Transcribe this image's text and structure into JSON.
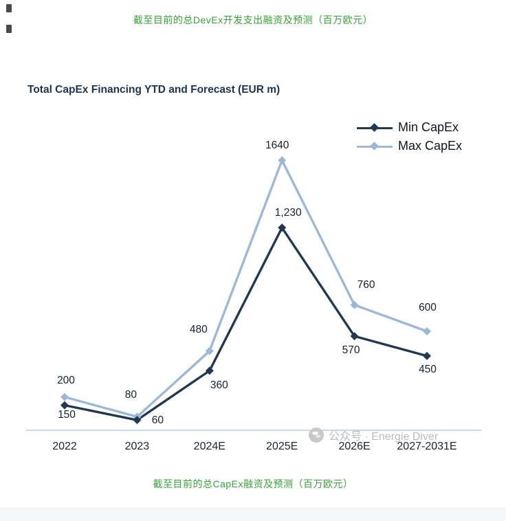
{
  "page": {
    "top_caption": "截至目前的总DevEx开发支出融资及预测（百万欧元）",
    "bottom_caption": "截至目前的总CapEx融资及预测（百万欧元）",
    "watermark": "公众号 · Energie Diver"
  },
  "chart_data": {
    "type": "line",
    "title": "Total CapEx Financing YTD and Forecast (EUR m)",
    "categories": [
      "2022",
      "2023",
      "2024E",
      "2025E",
      "2026E",
      "2027-2031E"
    ],
    "series": [
      {
        "name": "Min CapEx",
        "color": "#22384e",
        "values": [
          150,
          60,
          360,
          1230,
          570,
          450
        ],
        "labels": [
          "150",
          "60",
          "360",
          "1,230",
          "570",
          "450"
        ]
      },
      {
        "name": "Max CapEx",
        "color": "#9cb8d6",
        "values": [
          200,
          80,
          480,
          1640,
          760,
          600
        ],
        "labels": [
          "200",
          "80",
          "480",
          "1640",
          "760",
          "600"
        ]
      }
    ],
    "ylim": [
      0,
      1750
    ],
    "grid": false,
    "legend_position": "top-right",
    "marker": "diamond",
    "colors": {
      "caption_green": "#37a237",
      "title_navy": "#1b3550",
      "axis_line": "#c6d9ea",
      "watermark_gray": "#bcbcbc"
    }
  }
}
